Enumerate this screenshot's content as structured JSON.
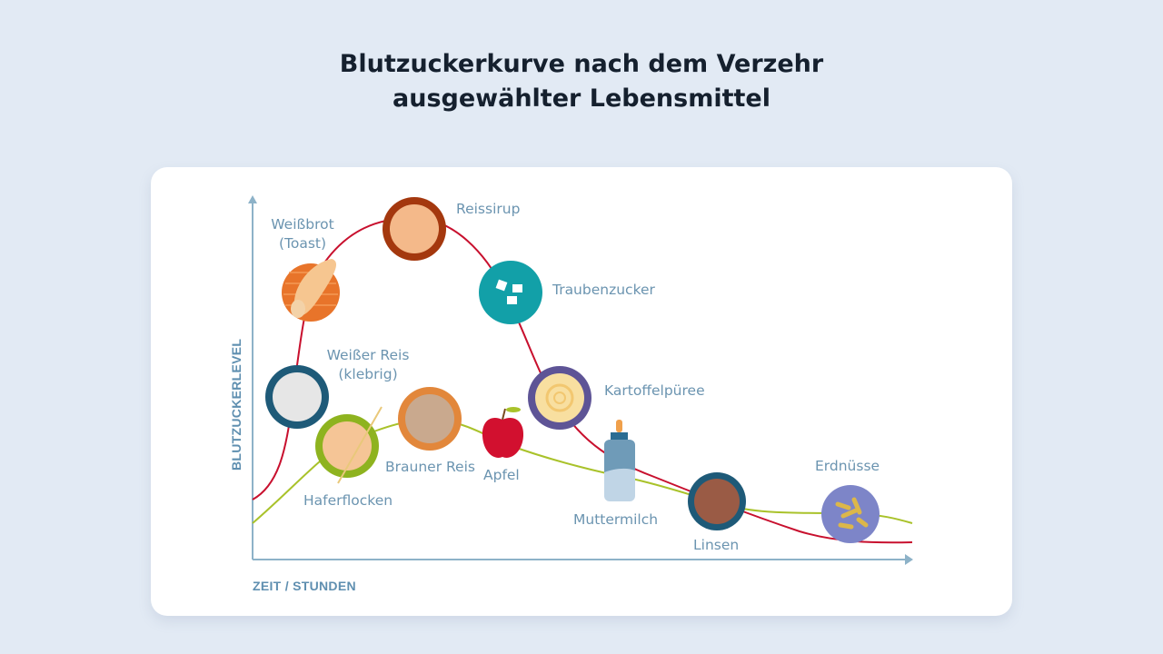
{
  "title": {
    "line1": "Blutzuckerkurve nach dem Verzehr",
    "line2": "ausgewählter Lebensmittel"
  },
  "axes": {
    "y_label": "BLUTZUCKERLEVEL",
    "x_label": "ZEIT / STUNDEN"
  },
  "curves": {
    "high": {
      "name": "hoher glykämischer Index",
      "color": "#c8102e"
    },
    "low": {
      "name": "niedriger glykämischer Index",
      "color": "#a9c22a"
    }
  },
  "foods": {
    "weissbrot": {
      "line1": "Weißbrot",
      "line2": "(Toast)",
      "icon": "toast-bread-icon"
    },
    "reissirup": {
      "label": "Reissirup",
      "icon": "rice-syrup-icon"
    },
    "traubenzucker": {
      "label": "Traubenzucker",
      "icon": "sugar-cubes-icon"
    },
    "weisser_reis": {
      "line1": "Weißer Reis",
      "line2": "(klebrig)",
      "icon": "white-rice-icon"
    },
    "kartoffelpueree": {
      "label": "Kartoffelpüree",
      "icon": "mashed-potato-icon"
    },
    "haferflocken": {
      "label": "Haferflocken",
      "icon": "oats-icon"
    },
    "brauner_reis": {
      "label": "Brauner Reis",
      "icon": "brown-rice-icon"
    },
    "apfel": {
      "label": "Apfel",
      "icon": "apple-icon"
    },
    "muttermilch": {
      "label": "Muttermilch",
      "icon": "baby-bottle-icon"
    },
    "linsen": {
      "label": "Linsen",
      "icon": "lentils-icon"
    },
    "erdnuesse": {
      "label": "Erdnüsse",
      "icon": "peanuts-icon"
    }
  }
}
